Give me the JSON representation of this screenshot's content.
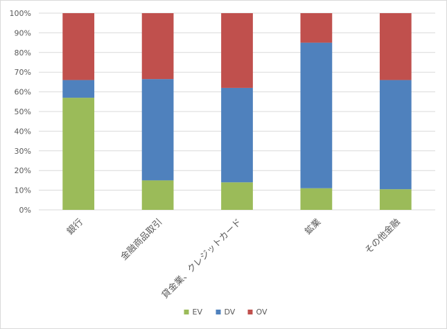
{
  "chart_data": {
    "type": "bar",
    "stacked": true,
    "percent_stacked": true,
    "categories": [
      "銀行",
      "金融商品取引",
      "貸金業、クレジットカード",
      "鉱業",
      "その他金融"
    ],
    "series": [
      {
        "name": "EV",
        "color": "#9bbb59",
        "values": [
          57,
          15,
          14,
          11,
          10.5
        ]
      },
      {
        "name": "DV",
        "color": "#4f81bd",
        "values": [
          9,
          51.5,
          48,
          74,
          55.5
        ]
      },
      {
        "name": "OV",
        "color": "#c0504d",
        "values": [
          34,
          33.5,
          38,
          15,
          34
        ]
      }
    ],
    "ylim": [
      0,
      100
    ],
    "yticks": [
      "0%",
      "10%",
      "20%",
      "30%",
      "40%",
      "50%",
      "60%",
      "70%",
      "80%",
      "90%",
      "100%"
    ],
    "grid": true,
    "legend_position": "bottom",
    "title": "",
    "xlabel": "",
    "ylabel": ""
  }
}
